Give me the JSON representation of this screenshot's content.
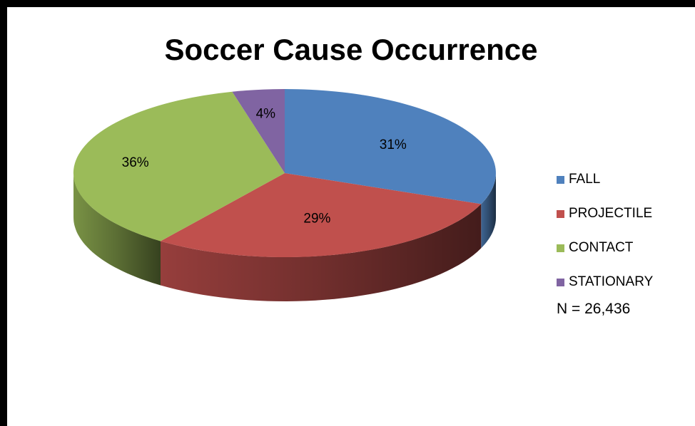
{
  "chart_data": {
    "type": "pie",
    "title": "Soccer Cause Occurrence",
    "slices": [
      {
        "label": "FALL",
        "value": 31,
        "data_label": "31%",
        "color": "#4F81BD"
      },
      {
        "label": "PROJECTILE",
        "value": 29,
        "data_label": "29%",
        "color": "#C0504D"
      },
      {
        "label": "CONTACT",
        "value": 36,
        "data_label": "36%",
        "color": "#9BBB59"
      },
      {
        "label": "STATIONARY",
        "value": 4,
        "data_label": "4%",
        "color": "#8064A2"
      }
    ],
    "legend_position": "right",
    "note": "N = 26,436",
    "style": "3d-pie"
  }
}
